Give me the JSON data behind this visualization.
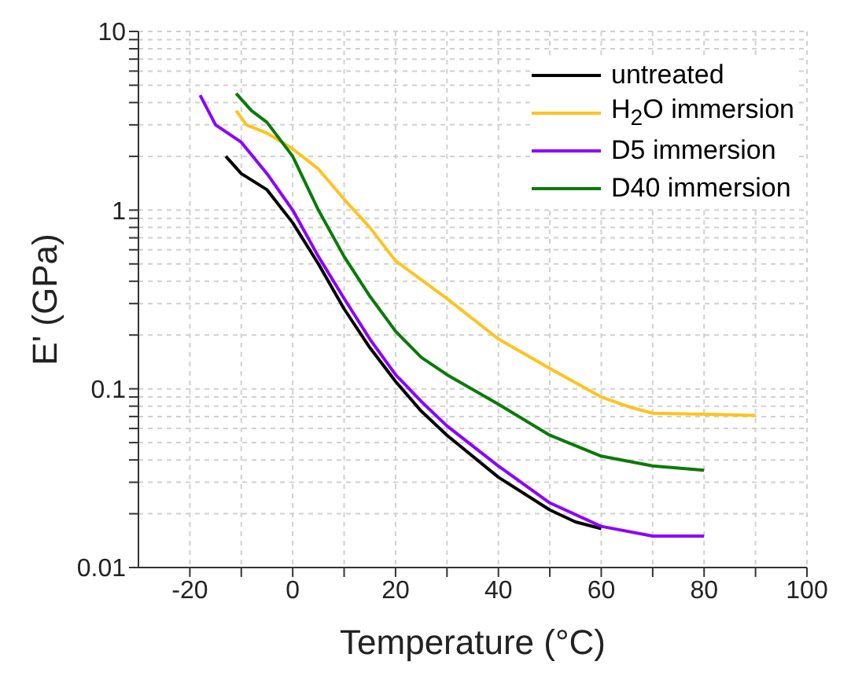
{
  "chart_data": {
    "type": "line",
    "xlabel": "Temperature (°C)",
    "ylabel": "E' (GPa)",
    "log": "y",
    "grid": true,
    "legend": "top right",
    "marker": "none",
    "line_style": "solid",
    "xlim": [
      -30,
      100
    ],
    "ylim": [
      0.01,
      10
    ],
    "xticks": [
      -20,
      {
        "value": -10,
        "label": null
      },
      0,
      {
        "value": 10,
        "label": null
      },
      20,
      {
        "value": 30,
        "label": null
      },
      40,
      {
        "value": 50,
        "label": null
      },
      60,
      {
        "value": 70,
        "label": null
      },
      80,
      {
        "value": 90,
        "label": null
      },
      100
    ],
    "yticks": [
      0.01,
      {
        "value": 0.02,
        "label": null
      },
      {
        "value": 0.03,
        "label": null
      },
      {
        "value": 0.04,
        "label": null
      },
      {
        "value": 0.05,
        "label": null
      },
      {
        "value": 0.06,
        "label": null
      },
      {
        "value": 0.07,
        "label": null
      },
      {
        "value": 0.08,
        "label": null
      },
      {
        "value": 0.09,
        "label": null
      },
      0.1,
      {
        "value": 0.2,
        "label": null
      },
      {
        "value": 0.3,
        "label": null
      },
      {
        "value": 0.4,
        "label": null
      },
      {
        "value": 0.5,
        "label": null
      },
      {
        "value": 0.6,
        "label": null
      },
      {
        "value": 0.7,
        "label": null
      },
      {
        "value": 0.8,
        "label": null
      },
      {
        "value": 0.9,
        "label": null
      },
      1,
      {
        "value": 2,
        "label": null
      },
      {
        "value": 3,
        "label": null
      },
      {
        "value": 4,
        "label": null
      },
      {
        "value": 5,
        "label": null
      },
      {
        "value": 6,
        "label": null
      },
      {
        "value": 7,
        "label": null
      },
      {
        "value": 8,
        "label": null
      },
      {
        "value": 9,
        "label": null
      },
      10
    ],
    "series": [
      {
        "name": "untreated",
        "color": "#000000",
        "x": [
          -13,
          -10,
          -5,
          0,
          5,
          10,
          15,
          20,
          25,
          30,
          40,
          50,
          55,
          60
        ],
        "values": [
          2.0,
          1.6,
          1.3,
          0.85,
          0.5,
          0.28,
          0.17,
          0.11,
          0.075,
          0.055,
          0.032,
          0.021,
          0.018,
          0.0165
        ]
      },
      {
        "name": "H$_{2}$O immersion",
        "color": "#ffc31f",
        "x": [
          -11,
          -9,
          -5,
          0,
          5,
          10,
          15,
          20,
          30,
          40,
          50,
          60,
          65,
          70,
          80,
          90
        ],
        "values": [
          3.6,
          3.0,
          2.7,
          2.2,
          1.7,
          1.15,
          0.8,
          0.52,
          0.32,
          0.19,
          0.13,
          0.09,
          0.08,
          0.073,
          0.072,
          0.071
        ]
      },
      {
        "name": "D5 immersion",
        "color": "#8b00ff",
        "x": [
          -18,
          -15,
          -10,
          -5,
          0,
          5,
          10,
          15,
          20,
          25,
          30,
          40,
          50,
          60,
          70,
          80
        ],
        "values": [
          4.4,
          3.0,
          2.4,
          1.6,
          1.0,
          0.55,
          0.32,
          0.19,
          0.12,
          0.085,
          0.062,
          0.037,
          0.023,
          0.017,
          0.015,
          0.015
        ]
      },
      {
        "name": "D40 immersion",
        "color": "#0a7a0a",
        "x": [
          -11,
          -8,
          -5,
          0,
          5,
          10,
          15,
          20,
          25,
          30,
          40,
          50,
          60,
          70,
          80
        ],
        "values": [
          4.5,
          3.6,
          3.1,
          2.0,
          1.0,
          0.55,
          0.33,
          0.21,
          0.15,
          0.12,
          0.082,
          0.055,
          0.042,
          0.037,
          0.035
        ]
      }
    ]
  }
}
